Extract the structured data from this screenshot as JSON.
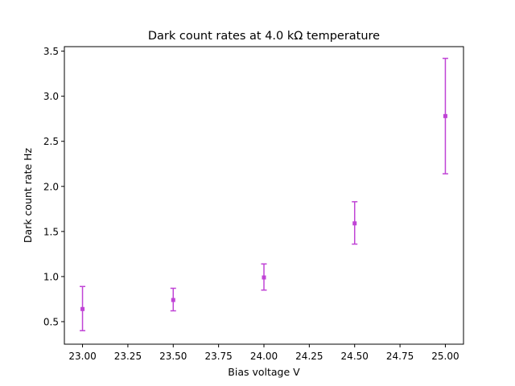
{
  "chart_data": {
    "type": "scatter",
    "title": "Dark count rates at 4.0 kΩ temperature",
    "xlabel": "Bias voltage V",
    "ylabel": "Dark count rate Hz",
    "xlim": [
      22.9,
      25.1
    ],
    "ylim": [
      0.25,
      3.55
    ],
    "xticks": [
      "23.00",
      "23.25",
      "23.50",
      "23.75",
      "24.00",
      "24.25",
      "24.50",
      "24.75",
      "25.00"
    ],
    "yticks": [
      "0.5",
      "1.0",
      "1.5",
      "2.0",
      "2.5",
      "3.0",
      "3.5"
    ],
    "grid": false,
    "marker_color": "#c044d6",
    "series": [
      {
        "x": [
          23.0,
          23.5,
          24.0,
          24.5,
          25.0
        ],
        "y": [
          0.64,
          0.74,
          0.99,
          1.59,
          2.78
        ],
        "yerr_low": [
          0.4,
          0.62,
          0.85,
          1.36,
          2.14
        ],
        "yerr_high": [
          0.89,
          0.87,
          1.14,
          1.83,
          3.42
        ]
      }
    ]
  }
}
